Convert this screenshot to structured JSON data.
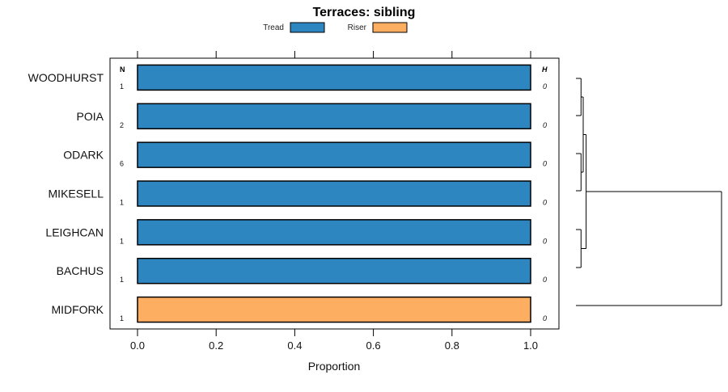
{
  "chart_data": {
    "type": "bar",
    "orientation": "horizontal",
    "stacked": true,
    "title": "Terraces: sibling",
    "xlabel": "Proportion",
    "ylabel": "",
    "xlim": [
      -0.07,
      1.07
    ],
    "xticks": [
      0.0,
      0.2,
      0.4,
      0.6,
      0.8,
      1.0
    ],
    "xtick_labels": [
      "0.0",
      "0.2",
      "0.4",
      "0.6",
      "0.8",
      "1.0"
    ],
    "legend_position": "top-center",
    "series": [
      {
        "name": "Tread",
        "color": "#2e86c1",
        "values": [
          1,
          1,
          1,
          1,
          1,
          1,
          0
        ]
      },
      {
        "name": "Riser",
        "color": "#fdae61",
        "values": [
          0,
          0,
          0,
          0,
          0,
          0,
          1
        ]
      }
    ],
    "categories": [
      "WOODHURST",
      "POIA",
      "ODARK",
      "MIKESELL",
      "LEIGHCAN",
      "BACHUS",
      "MIDFORK"
    ],
    "n_header": "N",
    "n_values": [
      "1",
      "2",
      "6",
      "1",
      "1",
      "1",
      "1"
    ],
    "h_header": "H",
    "h_values": [
      "0",
      "0",
      "0",
      "0",
      "0",
      "0",
      "0"
    ],
    "dendrogram": {
      "leaves": [
        "WOODHURST",
        "POIA",
        "ODARK",
        "MIKESELL",
        "LEIGHCAN",
        "BACHUS",
        "MIDFORK"
      ],
      "merges": [
        {
          "left": 0,
          "right": 1,
          "height": 0.035
        },
        {
          "left": 2,
          "right": 3,
          "height": 0.035
        },
        {
          "left": 4,
          "right": 5,
          "height": 0.035
        },
        {
          "left": -1,
          "right": -2,
          "height": 0.05
        },
        {
          "left": -4,
          "right": -3,
          "height": 0.07
        },
        {
          "left": -5,
          "right": 6,
          "height": 1.0
        }
      ]
    }
  }
}
